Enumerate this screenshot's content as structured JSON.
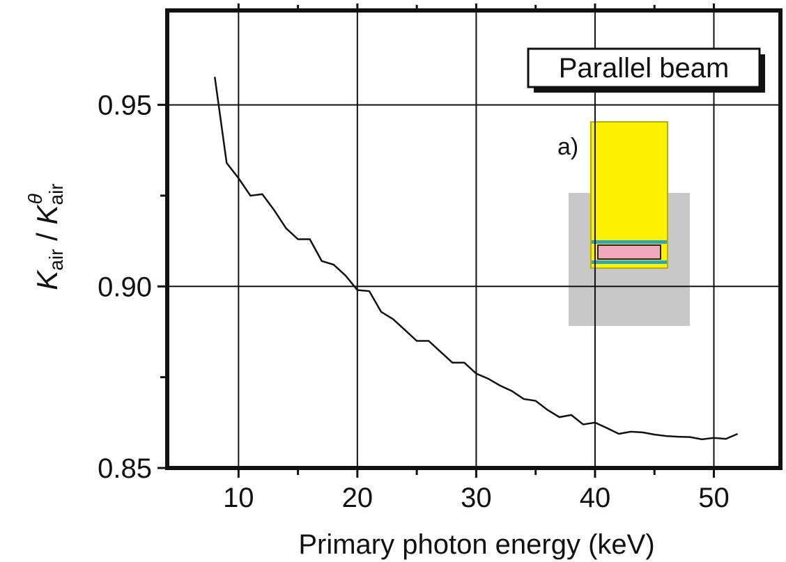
{
  "chart_data": {
    "type": "line",
    "x": [
      8,
      9,
      10,
      11,
      12,
      13,
      14,
      15,
      16,
      17,
      18,
      19,
      20,
      21,
      22,
      23,
      24,
      25,
      26,
      27,
      28,
      29,
      30,
      31,
      32,
      33,
      34,
      35,
      36,
      37,
      38,
      39,
      40,
      41,
      42,
      43,
      44,
      45,
      46,
      47,
      48,
      49,
      50,
      51,
      52
    ],
    "series": [
      {
        "color": "#111111",
        "values": [
          0.9577,
          0.934,
          0.9298,
          0.925,
          0.9254,
          0.921,
          0.916,
          0.913,
          0.913,
          0.907,
          0.906,
          0.903,
          0.899,
          0.8987,
          0.893,
          0.891,
          0.888,
          0.885,
          0.885,
          0.882,
          0.879,
          0.879,
          0.876,
          0.8746,
          0.8727,
          0.8712,
          0.869,
          0.8685,
          0.866,
          0.864,
          0.8646,
          0.862,
          0.8625,
          0.861,
          0.8594,
          0.86,
          0.8598,
          0.8592,
          0.8588,
          0.8586,
          0.8585,
          0.8579,
          0.8583,
          0.858,
          0.8594
        ]
      }
    ],
    "xlim": [
      4,
      55.6
    ],
    "ylim": [
      0.85,
      0.976
    ],
    "xticks": [
      10,
      20,
      30,
      40,
      50
    ],
    "xminorticks": [
      15,
      25,
      35,
      45
    ],
    "yticks": [
      0.85,
      {
        "value": 0.9,
        "label": "0.90"
      },
      0.95
    ],
    "yminorticks": [
      0.875,
      0.925
    ],
    "grid": true,
    "xlabel": "Primary photon energy (keV)",
    "ylabel": [
      "K",
      "air",
      " / ",
      "K",
      "air",
      "θ"
    ],
    "annotations": [
      "Parallel beam",
      "a)"
    ]
  }
}
